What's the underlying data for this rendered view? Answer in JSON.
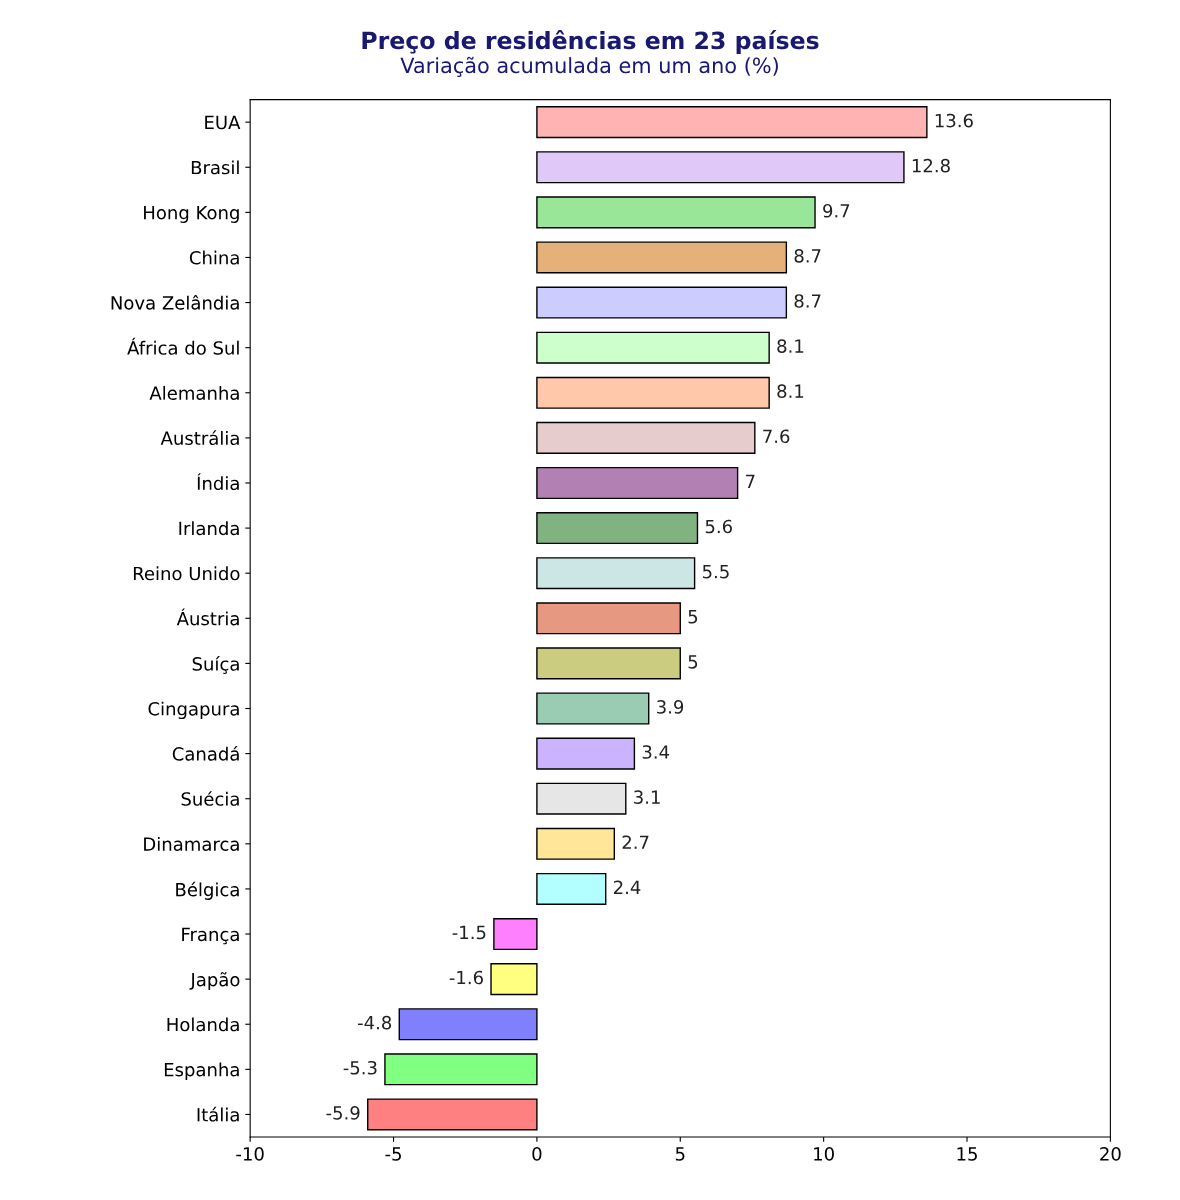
{
  "chart_data": {
    "type": "bar",
    "orientation": "horizontal",
    "title": "Preço de residências em 23 países",
    "subtitle": "Variação acumulada em um ano (%)",
    "categories": [
      "EUA",
      "Brasil",
      "Hong Kong",
      "China",
      "Nova Zelândia",
      "África do Sul",
      "Alemanha",
      "Austrália",
      "Índia",
      "Irlanda",
      "Reino Unido",
      "Áustria",
      "Suíça",
      "Cingapura",
      "Canadá",
      "Suécia",
      "Dinamarca",
      "Bélgica",
      "França",
      "Japão",
      "Holanda",
      "Espanha",
      "Itália"
    ],
    "values": [
      13.6,
      12.8,
      9.7,
      8.7,
      8.7,
      8.1,
      8.1,
      7.6,
      7,
      5.6,
      5.5,
      5,
      5,
      3.9,
      3.4,
      3.1,
      2.7,
      2.4,
      -1.5,
      -1.6,
      -4.8,
      -5.3,
      -5.9
    ],
    "colors": [
      "#ffb3b3",
      "#e0c8f8",
      "#99e699",
      "#e6b07a",
      "#ccccff",
      "#ccffcc",
      "#ffc8aa",
      "#e6cccc",
      "#b380b3",
      "#80b380",
      "#cce6e6",
      "#e69980",
      "#cccc80",
      "#99ccb3",
      "#ccb3ff",
      "#e6e6e6",
      "#ffe699",
      "#b3ffff",
      "#ff80ff",
      "#ffff80",
      "#8080ff",
      "#80ff80",
      "#ff8080"
    ],
    "xlim": [
      -10,
      20
    ],
    "xticks": [
      -10,
      -5,
      0,
      5,
      10,
      15,
      20
    ],
    "data_labels": true,
    "grid": false,
    "legend": false
  }
}
